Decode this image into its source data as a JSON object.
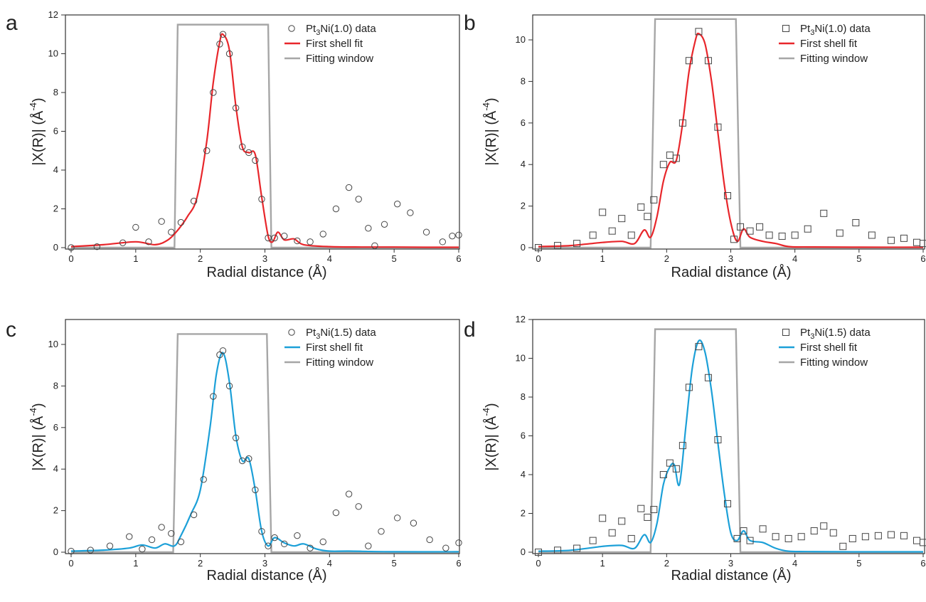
{
  "colors": {
    "axis": "#333333",
    "window": "#a6a6a6",
    "marker": "#444444",
    "fit_red": "#e8262b",
    "fit_blue": "#1ca0d8"
  },
  "chart_data": [
    {
      "panel_label": "a",
      "type": "line",
      "xlabel": "Radial distance (Å)",
      "ylabel": "|X(R)|  (Å",
      "ylabel_sup": "-4",
      "ylabel_close": ")",
      "xlim": [
        0,
        6
      ],
      "ylim": [
        0,
        12
      ],
      "xticks": [
        "0",
        "1",
        "2",
        "3",
        "4",
        "5",
        "6"
      ],
      "yticks": [
        "0",
        "2",
        "4",
        "6",
        "8",
        "10",
        "12"
      ],
      "marker": "circle",
      "fit_color": "red",
      "legend": {
        "data_main": "Pt",
        "data_sub": "3",
        "data_rest": "Ni(1.0) data",
        "fit": "First shell fit",
        "window": "Fitting window"
      },
      "window": {
        "x": [
          0,
          1.6,
          1.65,
          3.05,
          3.1,
          6
        ],
        "y": [
          0,
          0,
          11.5,
          11.5,
          0,
          0
        ]
      },
      "data": {
        "x": [
          0,
          0.4,
          0.8,
          1.0,
          1.2,
          1.4,
          1.55,
          1.7,
          1.9,
          2.1,
          2.2,
          2.3,
          2.35,
          2.45,
          2.55,
          2.65,
          2.75,
          2.85,
          2.95,
          3.05,
          3.15,
          3.3,
          3.5,
          3.7,
          3.9,
          4.1,
          4.3,
          4.45,
          4.6,
          4.7,
          4.85,
          5.05,
          5.25,
          5.5,
          5.75,
          5.9,
          6.0
        ],
        "y": [
          0,
          0.05,
          0.25,
          1.05,
          0.3,
          1.35,
          0.8,
          1.3,
          2.4,
          5.0,
          8.0,
          10.5,
          11.0,
          10.0,
          7.2,
          5.2,
          4.9,
          4.5,
          2.5,
          0.5,
          0.5,
          0.6,
          0.35,
          0.3,
          0.7,
          2.0,
          3.1,
          2.5,
          1.0,
          0.1,
          1.2,
          2.25,
          1.8,
          0.8,
          0.3,
          0.6,
          0.65
        ]
      },
      "fit": {
        "x": [
          0,
          0.5,
          1.0,
          1.3,
          1.5,
          1.65,
          1.8,
          1.95,
          2.1,
          2.2,
          2.3,
          2.35,
          2.45,
          2.55,
          2.65,
          2.75,
          2.85,
          2.95,
          3.05,
          3.12,
          3.2,
          3.3,
          3.45,
          3.6,
          4.0,
          4.5,
          5.0,
          5.5,
          6.0
        ],
        "y": [
          0.05,
          0.15,
          0.3,
          0.15,
          0.4,
          0.9,
          1.6,
          2.6,
          5.5,
          8.5,
          10.6,
          11.0,
          10.2,
          7.3,
          5.2,
          4.9,
          4.8,
          2.6,
          0.6,
          0.3,
          0.8,
          0.4,
          0.45,
          0.15,
          0.05,
          0.03,
          0.03,
          0.02,
          0.02
        ]
      }
    },
    {
      "panel_label": "b",
      "type": "line",
      "xlabel": "Radial distance (Å)",
      "ylabel": "|X(R)|  (Å",
      "ylabel_sup": "-4",
      "ylabel_close": ")",
      "xlim": [
        0,
        6
      ],
      "ylim": [
        0,
        11.2
      ],
      "xticks": [
        "0",
        "1",
        "2",
        "3",
        "4",
        "5",
        "6"
      ],
      "yticks": [
        "0",
        "2",
        "4",
        "6",
        "8",
        "10"
      ],
      "marker": "square",
      "fit_color": "red",
      "legend": {
        "data_main": "Pt",
        "data_sub": "3",
        "data_rest": "Ni(1.0) data",
        "fit": "First shell fit",
        "window": "Fitting window"
      },
      "window": {
        "x": [
          0,
          1.75,
          1.82,
          3.08,
          3.15,
          6
        ],
        "y": [
          0,
          0,
          11,
          11,
          0,
          0
        ]
      },
      "data": {
        "x": [
          0,
          0.3,
          0.6,
          0.85,
          1.0,
          1.15,
          1.3,
          1.45,
          1.6,
          1.7,
          1.8,
          1.95,
          2.05,
          2.15,
          2.25,
          2.35,
          2.5,
          2.65,
          2.8,
          2.95,
          3.05,
          3.15,
          3.3,
          3.45,
          3.6,
          3.8,
          4.0,
          4.2,
          4.45,
          4.7,
          4.95,
          5.2,
          5.5,
          5.7,
          5.9,
          6.0
        ],
        "y": [
          0,
          0.1,
          0.2,
          0.6,
          1.7,
          0.8,
          1.4,
          0.6,
          1.95,
          1.5,
          2.3,
          4.0,
          4.45,
          4.3,
          6.0,
          9.0,
          10.4,
          9.0,
          5.8,
          2.5,
          0.4,
          1.0,
          0.8,
          1.0,
          0.6,
          0.55,
          0.6,
          0.9,
          1.65,
          0.7,
          1.2,
          0.6,
          0.35,
          0.45,
          0.25,
          0.2
        ]
      },
      "fit": {
        "x": [
          0,
          0.5,
          1.0,
          1.3,
          1.5,
          1.65,
          1.75,
          1.85,
          1.95,
          2.05,
          2.15,
          2.25,
          2.35,
          2.45,
          2.5,
          2.6,
          2.7,
          2.8,
          2.9,
          3.0,
          3.1,
          3.2,
          3.3,
          3.5,
          3.7,
          3.9,
          4.2,
          5.0,
          6.0
        ],
        "y": [
          0.05,
          0.1,
          0.25,
          0.3,
          0.2,
          0.85,
          0.5,
          1.5,
          3.2,
          4.1,
          4.2,
          6.0,
          8.5,
          10.0,
          10.3,
          9.8,
          8.0,
          5.5,
          3.0,
          1.2,
          0.3,
          0.9,
          0.5,
          0.3,
          0.2,
          0.05,
          0.03,
          0.02,
          0.02
        ]
      }
    },
    {
      "panel_label": "c",
      "type": "line",
      "xlabel": "Radial distance (Å)",
      "ylabel": "|X(R)|  (Å",
      "ylabel_sup": "-4",
      "ylabel_close": ")",
      "xlim": [
        0,
        6
      ],
      "ylim": [
        0,
        11.2
      ],
      "xticks": [
        "0",
        "1",
        "2",
        "3",
        "4",
        "5",
        "6"
      ],
      "yticks": [
        "0",
        "2",
        "4",
        "6",
        "8",
        "10"
      ],
      "marker": "circle",
      "fit_color": "blue",
      "legend": {
        "data_main": "Pt",
        "data_sub": "3",
        "data_rest": "Ni(1.5) data",
        "fit": "First shell fit",
        "window": "Fitting window"
      },
      "window": {
        "x": [
          0,
          1.58,
          1.65,
          3.03,
          3.1,
          6
        ],
        "y": [
          0,
          0,
          10.5,
          10.5,
          0,
          0
        ]
      },
      "data": {
        "x": [
          0,
          0.3,
          0.6,
          0.9,
          1.1,
          1.25,
          1.4,
          1.55,
          1.7,
          1.9,
          2.05,
          2.2,
          2.3,
          2.35,
          2.45,
          2.55,
          2.65,
          2.75,
          2.85,
          2.95,
          3.05,
          3.15,
          3.3,
          3.5,
          3.7,
          3.9,
          4.1,
          4.3,
          4.45,
          4.6,
          4.8,
          5.05,
          5.3,
          5.55,
          5.8,
          6.0
        ],
        "y": [
          0.05,
          0.1,
          0.3,
          0.75,
          0.15,
          0.6,
          1.2,
          0.9,
          0.5,
          1.8,
          3.5,
          7.5,
          9.5,
          9.7,
          8.0,
          5.5,
          4.4,
          4.5,
          3.0,
          1.0,
          0.3,
          0.7,
          0.4,
          0.8,
          0.2,
          0.5,
          1.9,
          2.8,
          2.2,
          0.3,
          1.0,
          1.65,
          1.4,
          0.6,
          0.2,
          0.45
        ]
      },
      "fit": {
        "x": [
          0,
          0.5,
          0.9,
          1.1,
          1.3,
          1.45,
          1.6,
          1.7,
          1.85,
          2.0,
          2.15,
          2.25,
          2.35,
          2.45,
          2.55,
          2.65,
          2.75,
          2.85,
          2.95,
          3.05,
          3.15,
          3.3,
          3.45,
          3.6,
          3.8,
          4.0,
          4.3,
          5.0,
          6.0
        ],
        "y": [
          0.05,
          0.1,
          0.2,
          0.35,
          0.2,
          0.4,
          0.3,
          0.8,
          1.8,
          3.0,
          6.0,
          8.6,
          9.6,
          8.2,
          5.6,
          4.4,
          4.5,
          3.0,
          1.0,
          0.3,
          0.7,
          0.45,
          0.3,
          0.4,
          0.15,
          0.05,
          0.05,
          0.02,
          0.02
        ]
      }
    },
    {
      "panel_label": "d",
      "type": "line",
      "xlabel": "Radial distance (Å)",
      "ylabel": "|X(R)|  (Å",
      "ylabel_sup": "-4",
      "ylabel_close": ")",
      "xlim": [
        0,
        6
      ],
      "ylim": [
        0,
        12
      ],
      "xticks": [
        "0",
        "1",
        "2",
        "3",
        "4",
        "5",
        "6"
      ],
      "yticks": [
        "0",
        "2",
        "4",
        "6",
        "8",
        "10",
        "12"
      ],
      "marker": "square",
      "fit_color": "blue",
      "legend": {
        "data_main": "Pt",
        "data_sub": "3",
        "data_rest": "Ni(1.5) data",
        "fit": "First shell fit",
        "window": "Fitting window"
      },
      "window": {
        "x": [
          0,
          1.75,
          1.82,
          3.08,
          3.15,
          6
        ],
        "y": [
          0,
          0,
          11.5,
          11.5,
          0,
          0
        ]
      },
      "data": {
        "x": [
          0,
          0.3,
          0.6,
          0.85,
          1.0,
          1.15,
          1.3,
          1.45,
          1.6,
          1.7,
          1.8,
          1.95,
          2.05,
          2.15,
          2.25,
          2.35,
          2.5,
          2.65,
          2.8,
          2.95,
          3.1,
          3.2,
          3.3,
          3.5,
          3.7,
          3.9,
          4.1,
          4.3,
          4.45,
          4.6,
          4.75,
          4.9,
          5.1,
          5.3,
          5.5,
          5.7,
          5.9,
          6.0
        ],
        "y": [
          0,
          0.1,
          0.2,
          0.6,
          1.75,
          1.0,
          1.6,
          0.7,
          2.25,
          1.8,
          2.2,
          4.0,
          4.6,
          4.3,
          5.5,
          8.5,
          10.6,
          9.0,
          5.8,
          2.5,
          0.7,
          1.1,
          0.6,
          1.2,
          0.8,
          0.7,
          0.8,
          1.1,
          1.35,
          1.0,
          0.3,
          0.7,
          0.8,
          0.85,
          0.9,
          0.85,
          0.6,
          0.5
        ]
      },
      "fit": {
        "x": [
          0,
          0.5,
          1.0,
          1.3,
          1.5,
          1.65,
          1.75,
          1.85,
          1.95,
          2.05,
          2.12,
          2.2,
          2.3,
          2.4,
          2.5,
          2.6,
          2.7,
          2.8,
          2.9,
          3.0,
          3.1,
          3.2,
          3.3,
          3.5,
          3.7,
          3.9,
          4.2,
          5.0,
          6.0
        ],
        "y": [
          0.05,
          0.1,
          0.3,
          0.35,
          0.2,
          0.9,
          0.5,
          1.5,
          3.5,
          4.4,
          4.5,
          3.5,
          6.5,
          9.5,
          10.9,
          10.3,
          8.3,
          5.6,
          3.0,
          1.0,
          0.6,
          1.1,
          0.6,
          0.5,
          0.2,
          0.05,
          0.03,
          0.02,
          0.02
        ]
      }
    }
  ]
}
